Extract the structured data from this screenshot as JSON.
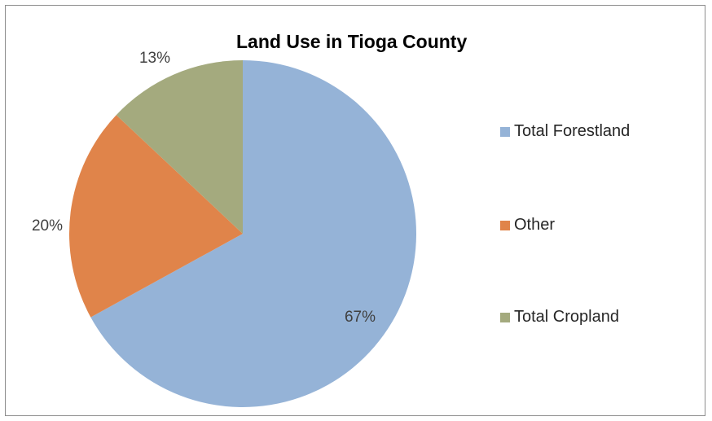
{
  "chart_data": {
    "type": "pie",
    "title": "Land Use in Tioga County",
    "categories": [
      "Total Forestland",
      "Other",
      "Total Cropland"
    ],
    "values": [
      67,
      20,
      13
    ],
    "labels": [
      "67%",
      "20%",
      "13%"
    ],
    "colors": [
      "#95b3d7",
      "#e0844a",
      "#a4aa7e"
    ],
    "legend_position": "right"
  }
}
